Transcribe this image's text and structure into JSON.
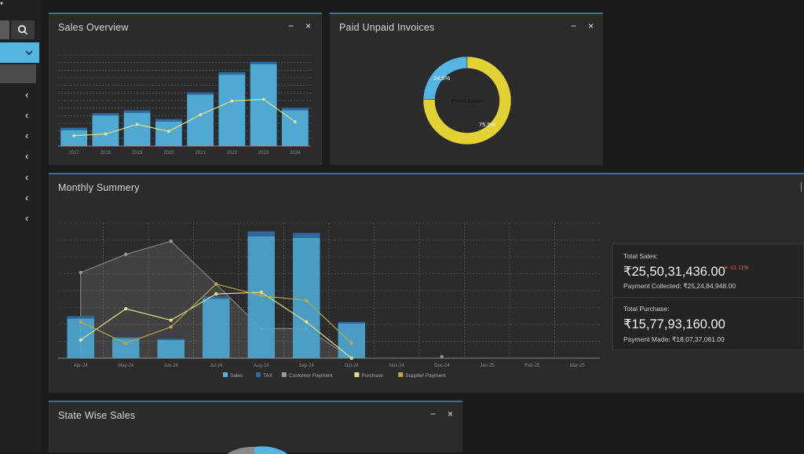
{
  "sidebar": {
    "chevron": "‹",
    "items": [
      "sidebar-item-1",
      "sidebar-item-2",
      "sidebar-item-3",
      "sidebar-item-4",
      "sidebar-item-5",
      "sidebar-item-6",
      "sidebar-item-7"
    ]
  },
  "panels": {
    "sales_overview": {
      "title": "Sales Overview",
      "minimize": "−",
      "close": "×"
    },
    "paid_unpaid": {
      "title": "Paid Unpaid Invoices",
      "minimize": "−",
      "close": "×"
    },
    "monthly": {
      "title": "Monthly Summery"
    },
    "state_wise": {
      "title": "State Wise Sales",
      "minimize": "−",
      "close": "×"
    }
  },
  "stats": {
    "total_sales_label": "Total Sales:",
    "total_sales_value": "₹25,50,31,436.00",
    "total_sales_change": "▾ -11.11%",
    "payment_collected": "Payment Collected: ₹25,24,84,948.00",
    "total_purchase_label": "Total Purchase:",
    "total_purchase_value": "₹15,77,93,160.00",
    "payment_made": "Payment Made: ₹18,07,37,061.00"
  },
  "colors": {
    "bar": "#4fa9d3",
    "bar_top": "#2f68a0",
    "line": "#e3de8a",
    "gray_area": "#7a7a7a",
    "supplier": "#b8a84a",
    "donut_blue": "#56b4e2",
    "donut_yellow": "#e2d236"
  },
  "chart_data": [
    {
      "type": "bar",
      "categories": [
        "2017",
        "2018",
        "2019",
        "2020",
        "2021",
        "2022",
        "2023",
        "2024"
      ],
      "series": [
        {
          "values": [
            21,
            38,
            41,
            31,
            62,
            85,
            97,
            44
          ]
        },
        {
          "values": [
            12,
            14,
            25,
            17,
            36,
            52,
            54,
            28
          ]
        }
      ],
      "ylim": [
        0,
        105
      ]
    },
    {
      "type": "pie",
      "labels": [
        "24.5%",
        "75.5%"
      ],
      "values": [
        24.5,
        75.5
      ],
      "center_label": "Paid/Unpaid"
    },
    {
      "type": "bar",
      "categories": [
        "Apr-24",
        "May-24",
        "Jun-24",
        "Jul-24",
        "Aug-24",
        "Sep-24",
        "Oct-24",
        "Nov-24",
        "Dec-24",
        "Jan-25",
        "Feb-25",
        "Mar-25"
      ],
      "legend": [
        "Sales",
        "TAX",
        "Customer Payment",
        "Purchase",
        "Supplier Payment"
      ],
      "series": [
        {
          "name": "Sales",
          "values": [
            24,
            12,
            11,
            36,
            74,
            73,
            21,
            0,
            0,
            0,
            0,
            0
          ]
        },
        {
          "name": "TAX",
          "values": [
            1.5,
            0.8,
            0.8,
            1.5,
            3,
            3,
            1,
            0,
            0,
            0,
            0,
            0
          ]
        },
        {
          "name": "Customer Payment",
          "values": [
            52,
            63,
            71,
            45,
            18,
            18,
            0,
            null,
            0,
            null,
            null,
            null
          ]
        },
        {
          "name": "Purchase",
          "values": [
            11,
            30,
            23,
            39,
            40,
            22,
            0,
            null,
            null,
            null,
            null,
            null
          ]
        },
        {
          "name": "Supplier Payment",
          "values": [
            22,
            9,
            19,
            45,
            38,
            35,
            9,
            null,
            null,
            null,
            null,
            null
          ]
        }
      ],
      "ylim": [
        0,
        82
      ]
    }
  ]
}
